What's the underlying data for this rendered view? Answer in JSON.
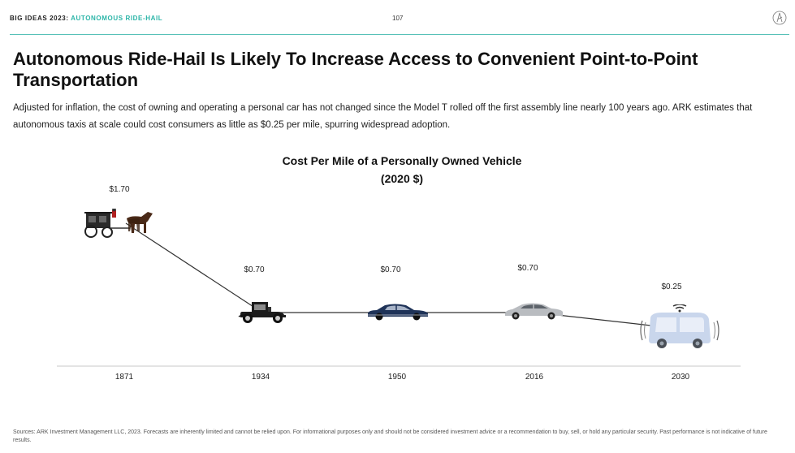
{
  "header": {
    "brand": "BIG IDEAS 2023:",
    "section": "AUTONOMOUS RIDE-HAIL",
    "page_number": "107",
    "logo_icon": "ark-logo-icon"
  },
  "title": "Autonomous Ride-Hail Is Likely To Increase Access to Convenient Point-to-Point Transportation",
  "subtitle": "Adjusted for inflation, the cost of owning and operating a personal car has not changed since the Model T rolled off the first assembly line nearly 100 years ago. ARK estimates that autonomous taxis at scale could cost consumers as little as $0.25 per mile, spurring widespread adoption.",
  "chart_data": {
    "type": "line",
    "title": "Cost Per Mile of a Personally Owned Vehicle",
    "subtitle": "(2020 $)",
    "categories": [
      "1871",
      "1934",
      "1950",
      "2016",
      "2030"
    ],
    "values": [
      1.7,
      0.7,
      0.7,
      0.7,
      0.25
    ],
    "data_labels": [
      "$1.70",
      "$0.70",
      "$0.70",
      "$0.70",
      "$0.25"
    ],
    "icons": [
      "horse-carriage-icon",
      "model-t-icon",
      "sedan-1950-icon",
      "modern-sedan-icon",
      "robotaxi-icon"
    ],
    "ylim": [
      0,
      2
    ],
    "grid": false,
    "legend": "none",
    "line_color": "#333333"
  },
  "footer": "Sources: ARK Investment Management LLC, 2023. Forecasts are inherently limited and cannot be relied upon. For informational purposes only and should not be considered investment advice or a recommendation to buy, sell, or hold any particular security. Past performance is not indicative of future results."
}
